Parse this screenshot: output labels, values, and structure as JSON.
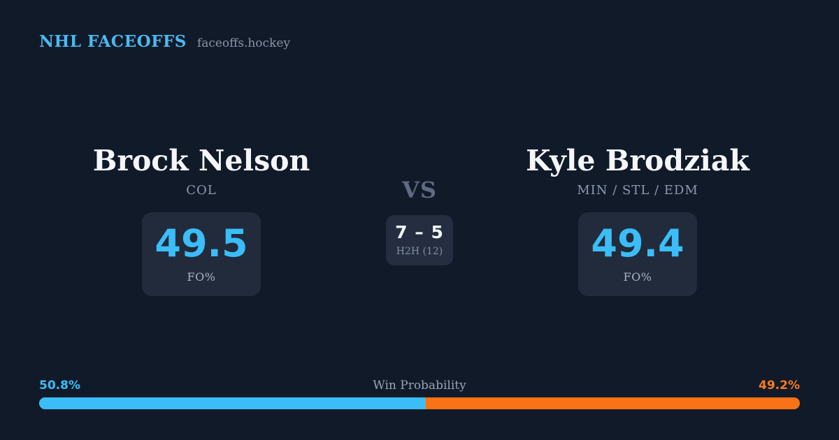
{
  "header": {
    "brand": "NHL FACEOFFS",
    "domain": "faceoffs.hockey"
  },
  "players": [
    {
      "name": "Brock Nelson",
      "teams": "COL",
      "fo_pct": "49.5",
      "fo_label": "FO%"
    },
    {
      "name": "Kyle Brodziak",
      "teams": "MIN / STL / EDM",
      "fo_pct": "49.4",
      "fo_label": "FO%"
    }
  ],
  "center": {
    "vs_label": "VS",
    "h2h_score": "7 – 5",
    "h2h_label": "H2H (12)"
  },
  "win_probability": {
    "title": "Win Probability",
    "left_label": "50.8%",
    "right_label": "49.2%",
    "left_value": 50.8,
    "right_value": 49.2
  },
  "colors": {
    "background": "#111a29",
    "card": "#212b3c",
    "h2h_card": "#242e40",
    "accent_blue": "#3bbdf8",
    "accent_orange": "#f97316",
    "brand_blue": "#4bb9ef",
    "name_white": "#f4f6fa",
    "muted_gray": "#8c99ad"
  }
}
